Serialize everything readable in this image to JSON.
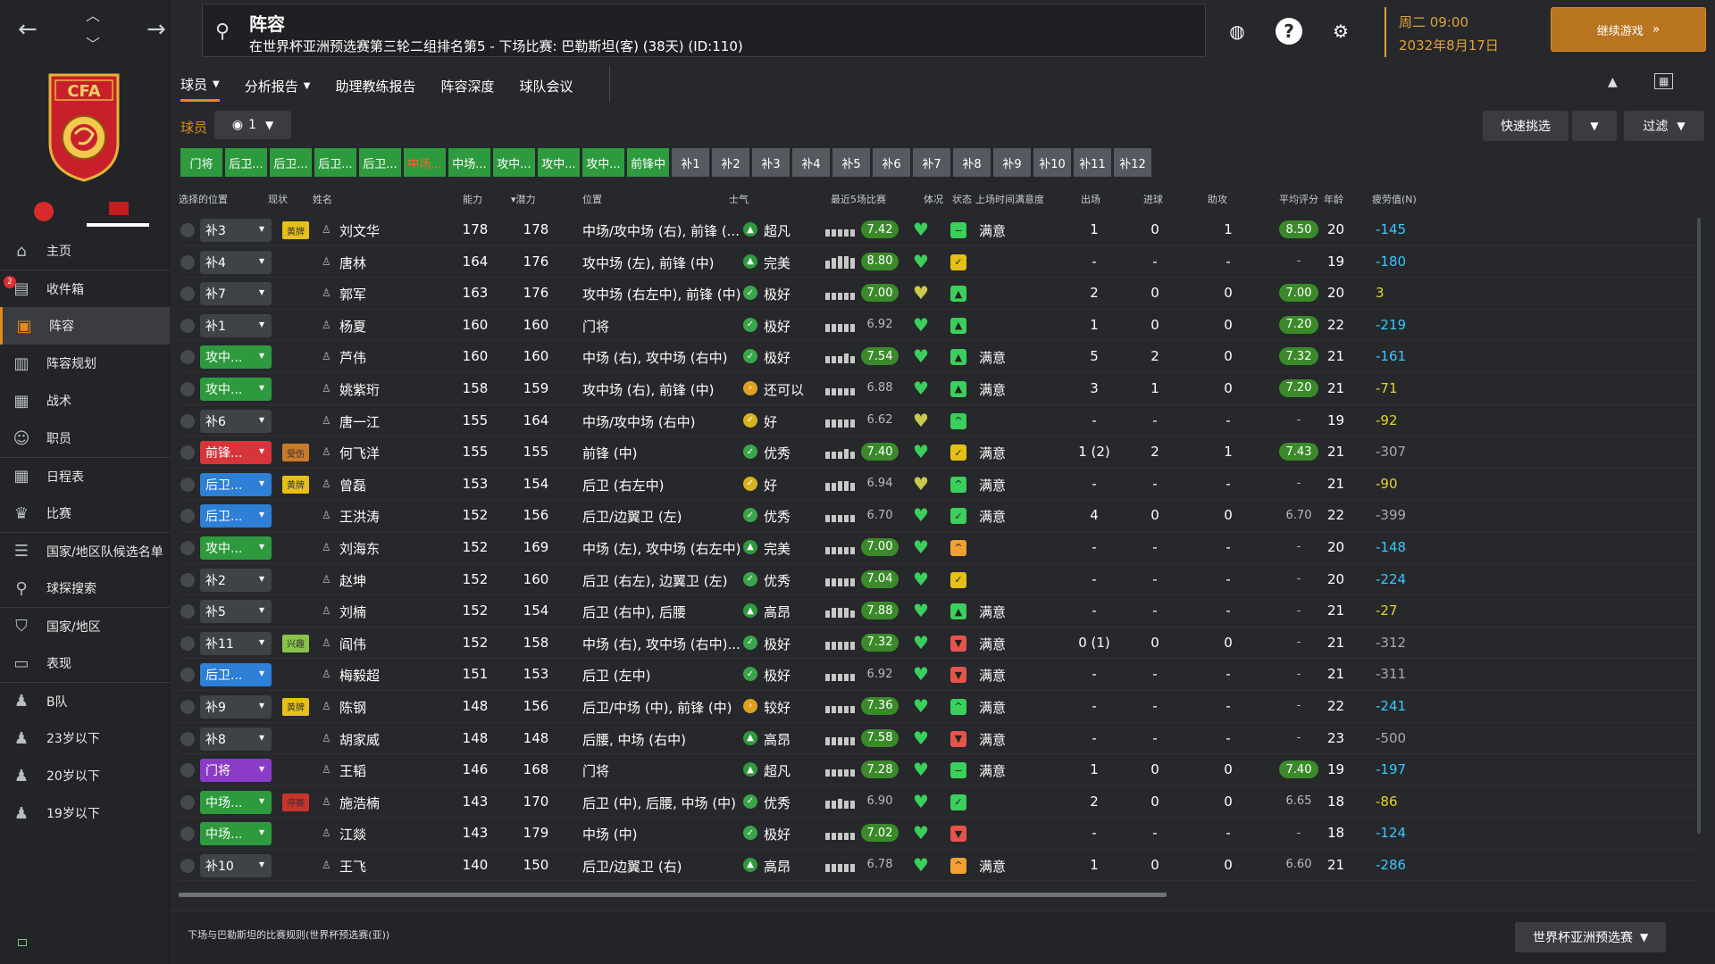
{
  "topbar": {
    "title": "阵容",
    "subtitle": "在世界杯亚洲预选赛第三轮二组排名第5 - 下场比赛: 巴勒斯坦(客) (38天) (ID:110)",
    "weekday_time": "周二 09:00",
    "date": "2032年8月17日",
    "continue_label": "继续游戏"
  },
  "sidebar": {
    "inbox_badge": "2",
    "items": [
      {
        "label": "主页",
        "icon": "home-icon"
      },
      {
        "label": "收件箱",
        "icon": "inbox-icon"
      },
      {
        "label": "阵容",
        "icon": "shirt-icon"
      },
      {
        "label": "阵容规划",
        "icon": "clipboard-icon"
      },
      {
        "label": "战术",
        "icon": "tactics-icon"
      },
      {
        "label": "职员",
        "icon": "staff-icon"
      },
      {
        "label": "日程表",
        "icon": "calendar-icon"
      },
      {
        "label": "比赛",
        "icon": "trophy-icon"
      },
      {
        "label": "国家/地区队候选名单",
        "icon": "list-icon"
      },
      {
        "label": "球探搜索",
        "icon": "search-icon"
      },
      {
        "label": "国家/地区",
        "icon": "shield-icon"
      },
      {
        "label": "表现",
        "icon": "briefcase-icon"
      },
      {
        "label": "B队",
        "icon": "team-icon"
      },
      {
        "label": "23岁以下",
        "icon": "team-icon"
      },
      {
        "label": "20岁以下",
        "icon": "team-icon"
      },
      {
        "label": "19岁以下",
        "icon": "team-icon"
      }
    ]
  },
  "tabs": [
    "球员",
    "分析报告",
    "助理教练报告",
    "阵容深度",
    "球队会议"
  ],
  "toolbar": {
    "players_label": "球员",
    "view_value": "1",
    "quick_pick": "快速挑选",
    "filter": "过滤"
  },
  "position_buttons": [
    "门将",
    "后卫...",
    "后卫...",
    "后卫...",
    "后卫...",
    "中场...",
    "中场...",
    "攻中...",
    "攻中...",
    "攻中...",
    "前锋中",
    "补1",
    "补2",
    "补3",
    "补4",
    "补5",
    "补6",
    "补7",
    "补8",
    "补9",
    "补10",
    "补11",
    "补12"
  ],
  "columns": [
    "选择的位置",
    "现状",
    "姓名",
    "能力",
    "▾潜力",
    "位置",
    "士气",
    "最近5场比赛",
    "体况",
    "状态",
    "上场时间满意度",
    "出场",
    "进球",
    "助攻",
    "平均评分",
    "年龄",
    "疲劳值(N)"
  ],
  "colors": {
    "accent": "#e28a1a",
    "green": "#2e9a3e",
    "red": "#d8343b",
    "blue": "#2e7fd6",
    "purple": "#8a3cc7",
    "grey": "#3f4246"
  },
  "players": [
    {
      "pos": "补3",
      "pos_color": "grey",
      "status": "黄牌",
      "status_color": "#e6c019",
      "name": "刘文华",
      "ability": "178",
      "potential": "178",
      "role": "中场/攻中场 (右), 前锋 (...",
      "morale_icon": "up",
      "morale": "超凡",
      "form": "7.42",
      "form_hi": true,
      "bars": [
        3,
        3,
        3,
        3,
        3
      ],
      "heart": "#3bcf5b",
      "cond": "minus",
      "cond_color": "#3bcf5b",
      "sat": "满意",
      "apps": "1",
      "goals": "0",
      "assists": "1",
      "avg": "8.50",
      "avg_hi": true,
      "age": "20",
      "trend": "-145",
      "trend_color": "#3ac7ff"
    },
    {
      "pos": "补4",
      "pos_color": "grey",
      "status": "",
      "name": "唐林",
      "ability": "164",
      "potential": "176",
      "role": "攻中场 (左), 前锋 (中)",
      "morale_icon": "up",
      "morale": "完美",
      "form": "8.80",
      "form_hi": true,
      "bars": [
        3,
        4,
        5,
        5,
        4
      ],
      "heart": "#3bcf5b",
      "cond": "check",
      "cond_color": "#e6c019",
      "sat": "",
      "apps": "-",
      "goals": "-",
      "assists": "-",
      "avg": "-",
      "avg_hi": false,
      "age": "19",
      "trend": "-180",
      "trend_color": "#3ac7ff"
    },
    {
      "pos": "补7",
      "pos_color": "grey",
      "status": "",
      "name": "郭军",
      "ability": "163",
      "potential": "176",
      "role": "攻中场 (右左中), 前锋 (中)",
      "morale_icon": "check",
      "morale": "极好",
      "form": "7.00",
      "form_hi": true,
      "bars": [
        3,
        3,
        3,
        3,
        3
      ],
      "heart": "#c9c94a",
      "cond": "up",
      "cond_color": "#3bcf5b",
      "sat": "",
      "apps": "2",
      "goals": "0",
      "assists": "0",
      "avg": "7.00",
      "avg_hi": true,
      "age": "20",
      "trend": "3",
      "trend_color": "#e6d32a"
    },
    {
      "pos": "补1",
      "pos_color": "grey",
      "status": "",
      "name": "杨夏",
      "ability": "160",
      "potential": "160",
      "role": "门将",
      "morale_icon": "check",
      "morale": "极好",
      "form": "6.92",
      "form_hi": false,
      "bars": [
        3,
        3,
        3,
        3,
        3
      ],
      "heart": "#3bcf5b",
      "cond": "up",
      "cond_color": "#3bcf5b",
      "sat": "",
      "apps": "1",
      "goals": "0",
      "assists": "0",
      "avg": "7.20",
      "avg_hi": true,
      "age": "22",
      "trend": "-219",
      "trend_color": "#3ac7ff"
    },
    {
      "pos": "攻中...",
      "pos_color": "green",
      "status": "",
      "name": "芦伟",
      "ability": "160",
      "potential": "160",
      "role": "中场 (右), 攻中场 (右中)",
      "morale_icon": "check",
      "morale": "极好",
      "form": "7.54",
      "form_hi": true,
      "bars": [
        3,
        3,
        3,
        4,
        3
      ],
      "heart": "#3bcf5b",
      "cond": "up",
      "cond_color": "#3bcf5b",
      "sat": "满意",
      "apps": "5",
      "goals": "2",
      "assists": "0",
      "avg": "7.32",
      "avg_hi": true,
      "age": "21",
      "trend": "-161",
      "trend_color": "#3ac7ff"
    },
    {
      "pos": "攻中...",
      "pos_color": "green",
      "status": "",
      "name": "姚紫珩",
      "ability": "158",
      "potential": "159",
      "role": "攻中场 (右), 前锋 (中)",
      "morale_icon": "right",
      "morale": "还可以",
      "form": "6.88",
      "form_hi": false,
      "bars": [
        3,
        3,
        3,
        3,
        3
      ],
      "heart": "#3bcf5b",
      "cond": "up",
      "cond_color": "#3bcf5b",
      "sat": "满意",
      "apps": "3",
      "goals": "1",
      "assists": "0",
      "avg": "7.20",
      "avg_hi": true,
      "age": "21",
      "trend": "-71",
      "trend_color": "#e6d32a"
    },
    {
      "pos": "补6",
      "pos_color": "grey",
      "status": "",
      "name": "唐一江",
      "ability": "155",
      "potential": "164",
      "role": "中场/攻中场 (右中)",
      "morale_icon": "check-y",
      "morale": "好",
      "form": "6.62",
      "form_hi": false,
      "bars": [
        3,
        3,
        3,
        3,
        3
      ],
      "heart": "#c9c94a",
      "cond": "up2",
      "cond_color": "#3bcf5b",
      "sat": "",
      "apps": "-",
      "goals": "-",
      "assists": "-",
      "avg": "-",
      "avg_hi": false,
      "age": "19",
      "trend": "-92",
      "trend_color": "#e6d32a"
    },
    {
      "pos": "前锋...",
      "pos_color": "red",
      "status": "受伤",
      "status_color": "#c97a2a",
      "name": "何飞洋",
      "ability": "155",
      "potential": "155",
      "role": "前锋 (中)",
      "morale_icon": "check",
      "morale": "优秀",
      "form": "7.40",
      "form_hi": true,
      "bars": [
        3,
        3,
        3,
        4,
        3
      ],
      "heart": "#3bcf5b",
      "cond": "check",
      "cond_color": "#e6c019",
      "sat": "满意",
      "apps": "1 (2)",
      "goals": "2",
      "assists": "1",
      "avg": "7.43",
      "avg_hi": true,
      "age": "21",
      "trend": "-307",
      "trend_color": "#aaaaaa"
    },
    {
      "pos": "后卫...",
      "pos_color": "blue",
      "status": "黄牌",
      "status_color": "#e6c019",
      "name": "曾磊",
      "ability": "153",
      "potential": "154",
      "role": "后卫 (右左中)",
      "morale_icon": "check-y",
      "morale": "好",
      "form": "6.94",
      "form_hi": false,
      "bars": [
        3,
        3,
        4,
        4,
        3
      ],
      "heart": "#c9c94a",
      "cond": "up2",
      "cond_color": "#3bcf5b",
      "sat": "满意",
      "apps": "-",
      "goals": "-",
      "assists": "-",
      "avg": "-",
      "avg_hi": false,
      "age": "21",
      "trend": "-90",
      "trend_color": "#e6d32a"
    },
    {
      "pos": "后卫...",
      "pos_color": "blue",
      "status": "",
      "name": "王洪涛",
      "ability": "152",
      "potential": "156",
      "role": "后卫/边翼卫 (左)",
      "morale_icon": "check",
      "morale": "优秀",
      "form": "6.70",
      "form_hi": false,
      "bars": [
        3,
        3,
        3,
        3,
        3
      ],
      "heart": "#3bcf5b",
      "cond": "check",
      "cond_color": "#3bcf5b",
      "sat": "满意",
      "apps": "4",
      "goals": "0",
      "assists": "0",
      "avg": "6.70",
      "avg_hi": false,
      "age": "22",
      "trend": "-399",
      "trend_color": "#aaaaaa"
    },
    {
      "pos": "攻中...",
      "pos_color": "green",
      "status": "",
      "name": "刘海东",
      "ability": "152",
      "potential": "169",
      "role": "中场 (左), 攻中场 (右左中)",
      "morale_icon": "up",
      "morale": "完美",
      "form": "7.00",
      "form_hi": true,
      "bars": [
        3,
        3,
        3,
        3,
        3
      ],
      "heart": "#3bcf5b",
      "cond": "up2",
      "cond_color": "#f0a035",
      "sat": "",
      "apps": "-",
      "goals": "-",
      "assists": "-",
      "avg": "-",
      "avg_hi": false,
      "age": "20",
      "trend": "-148",
      "trend_color": "#3ac7ff"
    },
    {
      "pos": "补2",
      "pos_color": "grey",
      "status": "",
      "name": "赵坤",
      "ability": "152",
      "potential": "160",
      "role": "后卫 (右左), 边翼卫 (左)",
      "morale_icon": "check",
      "morale": "优秀",
      "form": "7.04",
      "form_hi": true,
      "bars": [
        3,
        3,
        3,
        3,
        3
      ],
      "heart": "#3bcf5b",
      "cond": "check",
      "cond_color": "#e6c019",
      "sat": "",
      "apps": "-",
      "goals": "-",
      "assists": "-",
      "avg": "-",
      "avg_hi": false,
      "age": "20",
      "trend": "-224",
      "trend_color": "#3ac7ff"
    },
    {
      "pos": "补5",
      "pos_color": "grey",
      "status": "",
      "name": "刘楠",
      "ability": "152",
      "potential": "154",
      "role": "后卫 (右中), 后腰",
      "morale_icon": "up",
      "morale": "高昂",
      "form": "7.88",
      "form_hi": true,
      "bars": [
        3,
        4,
        4,
        4,
        3
      ],
      "heart": "#3bcf5b",
      "cond": "up",
      "cond_color": "#3bcf5b",
      "sat": "满意",
      "apps": "-",
      "goals": "-",
      "assists": "-",
      "avg": "-",
      "avg_hi": false,
      "age": "21",
      "trend": "-27",
      "trend_color": "#e6d32a"
    },
    {
      "pos": "补11",
      "pos_color": "grey",
      "status": "兴趣",
      "status_color": "#8ac34a",
      "name": "阎伟",
      "ability": "152",
      "potential": "158",
      "role": "中场 (右), 攻中场 (右中)...",
      "morale_icon": "check",
      "morale": "极好",
      "form": "7.32",
      "form_hi": true,
      "bars": [
        3,
        3,
        3,
        3,
        3
      ],
      "heart": "#3bcf5b",
      "cond": "down",
      "cond_color": "#e5544c",
      "sat": "满意",
      "apps": "0 (1)",
      "goals": "0",
      "assists": "0",
      "avg": "-",
      "avg_hi": false,
      "age": "21",
      "trend": "-312",
      "trend_color": "#aaaaaa"
    },
    {
      "pos": "后卫...",
      "pos_color": "blue",
      "status": "",
      "name": "梅毅超",
      "ability": "151",
      "potential": "153",
      "role": "后卫 (左中)",
      "morale_icon": "check",
      "morale": "极好",
      "form": "6.92",
      "form_hi": false,
      "bars": [
        3,
        3,
        3,
        3,
        3
      ],
      "heart": "#3bcf5b",
      "cond": "down",
      "cond_color": "#e5544c",
      "sat": "满意",
      "apps": "-",
      "goals": "-",
      "assists": "-",
      "avg": "-",
      "avg_hi": false,
      "age": "21",
      "trend": "-311",
      "trend_color": "#aaaaaa"
    },
    {
      "pos": "补9",
      "pos_color": "grey",
      "status": "黄牌",
      "status_color": "#e6c019",
      "name": "陈钢",
      "ability": "148",
      "potential": "156",
      "role": "后卫/中场 (中), 前锋 (中)",
      "morale_icon": "right",
      "morale": "较好",
      "form": "7.36",
      "form_hi": true,
      "bars": [
        3,
        3,
        3,
        3,
        3
      ],
      "heart": "#3bcf5b",
      "cond": "up2",
      "cond_color": "#3bcf5b",
      "sat": "满意",
      "apps": "-",
      "goals": "-",
      "assists": "-",
      "avg": "-",
      "avg_hi": false,
      "age": "22",
      "trend": "-241",
      "trend_color": "#3ac7ff"
    },
    {
      "pos": "补8",
      "pos_color": "grey",
      "status": "",
      "name": "胡家威",
      "ability": "148",
      "potential": "148",
      "role": "后腰, 中场 (右中)",
      "morale_icon": "up",
      "morale": "高昂",
      "form": "7.58",
      "form_hi": true,
      "bars": [
        3,
        3,
        3,
        3,
        3
      ],
      "heart": "#3bcf5b",
      "cond": "down",
      "cond_color": "#e5544c",
      "sat": "满意",
      "apps": "-",
      "goals": "-",
      "assists": "-",
      "avg": "-",
      "avg_hi": false,
      "age": "23",
      "trend": "-500",
      "trend_color": "#aaaaaa"
    },
    {
      "pos": "门将",
      "pos_color": "purple",
      "status": "",
      "name": "王韬",
      "ability": "146",
      "potential": "168",
      "role": "门将",
      "morale_icon": "up",
      "morale": "超凡",
      "form": "7.28",
      "form_hi": true,
      "bars": [
        3,
        3,
        3,
        3,
        3
      ],
      "heart": "#3bcf5b",
      "cond": "minus",
      "cond_color": "#3bcf5b",
      "sat": "满意",
      "apps": "1",
      "goals": "0",
      "assists": "0",
      "avg": "7.40",
      "avg_hi": true,
      "age": "19",
      "trend": "-197",
      "trend_color": "#3ac7ff"
    },
    {
      "pos": "中场...",
      "pos_color": "green",
      "status": "停赛",
      "status_color": "#c9342c",
      "name": "施浩楠",
      "ability": "143",
      "potential": "170",
      "role": "后卫 (中), 后腰, 中场 (中)",
      "morale_icon": "check",
      "morale": "优秀",
      "form": "6.90",
      "form_hi": false,
      "bars": [
        3,
        3,
        4,
        3,
        3
      ],
      "heart": "#3bcf5b",
      "cond": "check",
      "cond_color": "#3bcf5b",
      "sat": "",
      "apps": "2",
      "goals": "0",
      "assists": "0",
      "avg": "6.65",
      "avg_hi": false,
      "age": "18",
      "trend": "-86",
      "trend_color": "#e6d32a"
    },
    {
      "pos": "中场...",
      "pos_color": "green",
      "status": "",
      "name": "江燚",
      "ability": "143",
      "potential": "179",
      "role": "中场 (中)",
      "morale_icon": "check",
      "morale": "极好",
      "form": "7.02",
      "form_hi": true,
      "bars": [
        3,
        3,
        3,
        3,
        3
      ],
      "heart": "#3bcf5b",
      "cond": "down",
      "cond_color": "#e5544c",
      "sat": "",
      "apps": "-",
      "goals": "-",
      "assists": "-",
      "avg": "-",
      "avg_hi": false,
      "age": "18",
      "trend": "-124",
      "trend_color": "#3ac7ff"
    },
    {
      "pos": "补10",
      "pos_color": "grey",
      "status": "",
      "name": "王飞",
      "ability": "140",
      "potential": "150",
      "role": "后卫/边翼卫 (右)",
      "morale_icon": "up",
      "morale": "高昂",
      "form": "6.78",
      "form_hi": false,
      "bars": [
        3,
        3,
        3,
        3,
        3
      ],
      "heart": "#3bcf5b",
      "cond": "up2",
      "cond_color": "#f0a035",
      "sat": "满意",
      "apps": "1",
      "goals": "0",
      "assists": "0",
      "avg": "6.60",
      "avg_hi": false,
      "age": "21",
      "trend": "-286",
      "trend_color": "#3ac7ff"
    }
  ],
  "footer": {
    "rules": "下场与巴勒斯坦的比赛规则(世界杯预选赛(亚))",
    "competition": "世界杯亚洲预选赛"
  }
}
